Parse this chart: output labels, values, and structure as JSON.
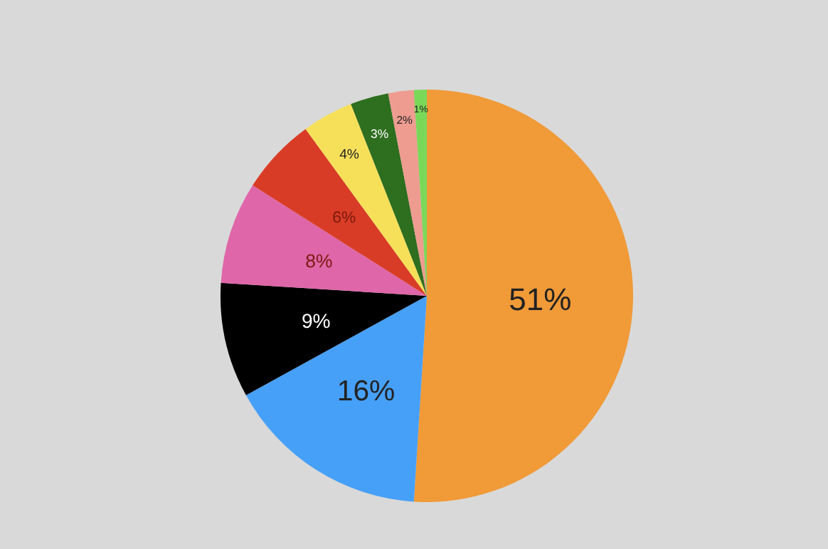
{
  "chart_data": {
    "type": "pie",
    "categories": [
      null,
      null,
      null,
      null,
      null,
      null,
      null,
      null,
      null
    ],
    "values": [
      51,
      16,
      9,
      8,
      6,
      4,
      3,
      2,
      1
    ],
    "colors": [
      "#f09a38",
      "#47a0f8",
      "#000000",
      "#df66a8",
      "#d93c26",
      "#f6e05a",
      "#2e6e1f",
      "#ee9c90",
      "#7ad859"
    ],
    "value_labels": [
      "51%",
      "16%",
      "9%",
      "8%",
      "6%",
      "4%",
      "3%",
      "2%",
      "1%"
    ],
    "legend": false
  }
}
